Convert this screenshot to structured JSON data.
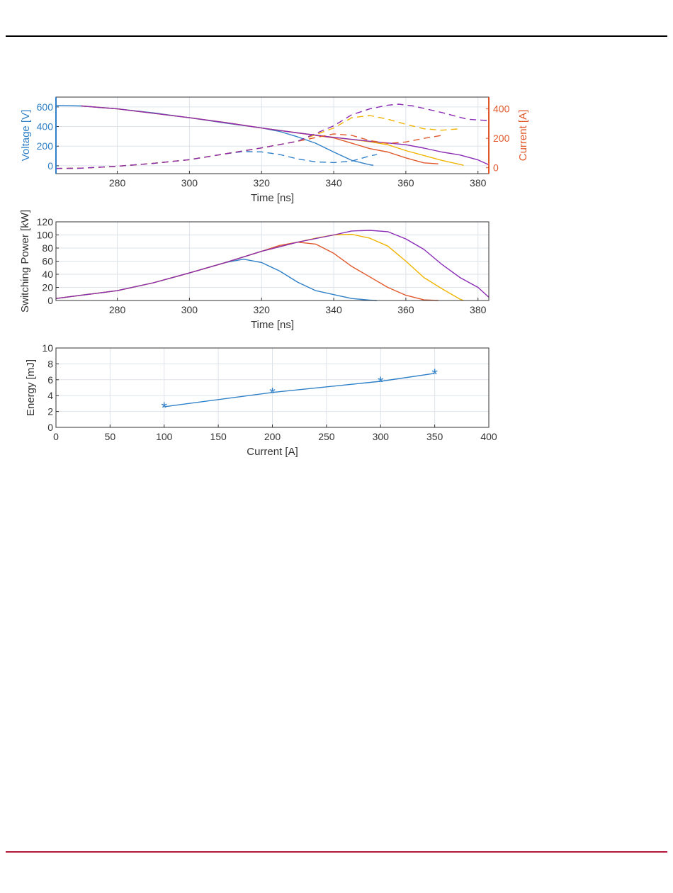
{
  "colors": {
    "blue": "#2f80c8",
    "orange": "#e0582a",
    "yellow": "#f0b400",
    "purple": "#8a2bb5",
    "grid": "#dde3ea",
    "axis": "#333333",
    "footer_rule": "#b5173b"
  },
  "chart_data": [
    {
      "type": "line",
      "xlabel": "Time [ns]",
      "ylabel": "Voltage [V]",
      "y2label": "Current [A]",
      "xlim": [
        263,
        383
      ],
      "ylim": [
        -80,
        700
      ],
      "y2lim": [
        -40,
        480
      ],
      "xticks": [
        280,
        300,
        320,
        340,
        360,
        380
      ],
      "yticks": [
        0,
        200,
        400,
        600
      ],
      "y2ticks": [
        0,
        200,
        400
      ],
      "grid": true,
      "series": [
        {
          "axis": "left",
          "style": "solid",
          "color_key": "blue",
          "x": [
            263,
            270,
            280,
            290,
            300,
            310,
            320,
            325,
            330,
            335,
            340,
            345,
            350,
            351
          ],
          "y": [
            615,
            610,
            580,
            540,
            490,
            435,
            385,
            350,
            295,
            230,
            140,
            55,
            10,
            5
          ]
        },
        {
          "axis": "left",
          "style": "solid",
          "color_key": "orange",
          "x": [
            270,
            280,
            290,
            300,
            310,
            320,
            330,
            340,
            345,
            350,
            355,
            360,
            365,
            369
          ],
          "y": [
            610,
            580,
            535,
            490,
            440,
            385,
            335,
            285,
            230,
            175,
            140,
            80,
            30,
            20
          ]
        },
        {
          "axis": "left",
          "style": "solid",
          "color_key": "yellow",
          "x": [
            270,
            280,
            290,
            300,
            310,
            320,
            330,
            340,
            350,
            355,
            360,
            365,
            370,
            376
          ],
          "y": [
            610,
            580,
            535,
            490,
            440,
            385,
            335,
            290,
            245,
            215,
            155,
            105,
            55,
            5
          ]
        },
        {
          "axis": "left",
          "style": "solid",
          "color_key": "purple",
          "x": [
            270,
            280,
            290,
            300,
            310,
            320,
            330,
            340,
            350,
            360,
            365,
            370,
            375,
            380,
            383
          ],
          "y": [
            610,
            580,
            535,
            490,
            440,
            385,
            335,
            290,
            250,
            215,
            180,
            140,
            110,
            60,
            10
          ]
        },
        {
          "axis": "right",
          "style": "dashed",
          "color_key": "blue",
          "x": [
            263,
            270,
            280,
            290,
            300,
            310,
            315,
            320,
            325,
            330,
            335,
            340,
            345,
            350,
            352
          ],
          "y": [
            -5,
            -3,
            10,
            30,
            55,
            95,
            110,
            108,
            90,
            60,
            40,
            35,
            45,
            80,
            90
          ]
        },
        {
          "axis": "right",
          "style": "dashed",
          "color_key": "orange",
          "x": [
            263,
            270,
            280,
            290,
            300,
            310,
            320,
            330,
            340,
            345,
            350,
            355,
            360,
            365,
            370
          ],
          "y": [
            -5,
            -3,
            10,
            30,
            55,
            95,
            135,
            180,
            230,
            220,
            185,
            165,
            175,
            200,
            220
          ]
        },
        {
          "axis": "right",
          "style": "dashed",
          "color_key": "yellow",
          "x": [
            263,
            270,
            280,
            290,
            300,
            310,
            320,
            330,
            340,
            345,
            350,
            355,
            360,
            365,
            370,
            375
          ],
          "y": [
            -5,
            -3,
            10,
            30,
            55,
            95,
            135,
            180,
            270,
            340,
            355,
            330,
            295,
            265,
            255,
            265
          ]
        },
        {
          "axis": "right",
          "style": "dashed",
          "color_key": "purple",
          "x": [
            263,
            270,
            280,
            290,
            300,
            310,
            320,
            330,
            340,
            345,
            350,
            355,
            358,
            362,
            370,
            377,
            383
          ],
          "y": [
            -5,
            -3,
            10,
            30,
            55,
            95,
            135,
            180,
            285,
            360,
            400,
            425,
            432,
            420,
            375,
            330,
            320
          ]
        }
      ]
    },
    {
      "type": "line",
      "xlabel": "Time [ns]",
      "ylabel": "Switching Power [kW]",
      "xlim": [
        263,
        383
      ],
      "ylim": [
        0,
        120
      ],
      "xticks": [
        280,
        300,
        320,
        340,
        360,
        380
      ],
      "yticks": [
        0,
        20,
        40,
        60,
        80,
        100,
        120
      ],
      "grid": true,
      "series": [
        {
          "color_key": "blue",
          "x": [
            263,
            270,
            280,
            290,
            300,
            310,
            315,
            320,
            325,
            330,
            335,
            340,
            345,
            350,
            352
          ],
          "y": [
            3,
            8,
            15,
            27,
            42,
            58,
            63,
            58,
            45,
            28,
            15,
            9,
            3,
            0.5,
            0
          ]
        },
        {
          "color_key": "orange",
          "x": [
            263,
            270,
            280,
            290,
            300,
            310,
            320,
            325,
            330,
            335,
            340,
            345,
            350,
            355,
            360,
            365,
            369
          ],
          "y": [
            3,
            8,
            15,
            27,
            42,
            58,
            75,
            84,
            89,
            86,
            72,
            52,
            36,
            20,
            8,
            1,
            0
          ]
        },
        {
          "color_key": "yellow",
          "x": [
            263,
            270,
            280,
            290,
            300,
            310,
            320,
            330,
            335,
            340,
            345,
            350,
            355,
            360,
            365,
            370,
            375,
            376
          ],
          "y": [
            3,
            8,
            15,
            27,
            42,
            58,
            75,
            89,
            95,
            100,
            101,
            95,
            83,
            60,
            35,
            18,
            2,
            0
          ]
        },
        {
          "color_key": "purple",
          "x": [
            263,
            270,
            280,
            290,
            300,
            310,
            320,
            330,
            340,
            345,
            350,
            355,
            360,
            365,
            370,
            375,
            380,
            383
          ],
          "y": [
            3,
            8,
            15,
            27,
            42,
            58,
            75,
            89,
            100,
            106,
            107,
            105,
            94,
            78,
            55,
            35,
            20,
            5
          ]
        }
      ]
    },
    {
      "type": "line",
      "xlabel": "Current [A]",
      "ylabel": "Energy [mJ]",
      "xlim": [
        0,
        400
      ],
      "ylim": [
        0,
        10
      ],
      "xticks": [
        0,
        50,
        100,
        150,
        200,
        250,
        300,
        350,
        400
      ],
      "yticks": [
        0,
        2,
        4,
        6,
        8,
        10
      ],
      "grid": true,
      "marker": "*",
      "series": [
        {
          "color_key": "blue",
          "x": [
            100,
            200,
            300,
            350
          ],
          "y": [
            2.6,
            4.4,
            5.8,
            6.8
          ]
        }
      ]
    }
  ]
}
